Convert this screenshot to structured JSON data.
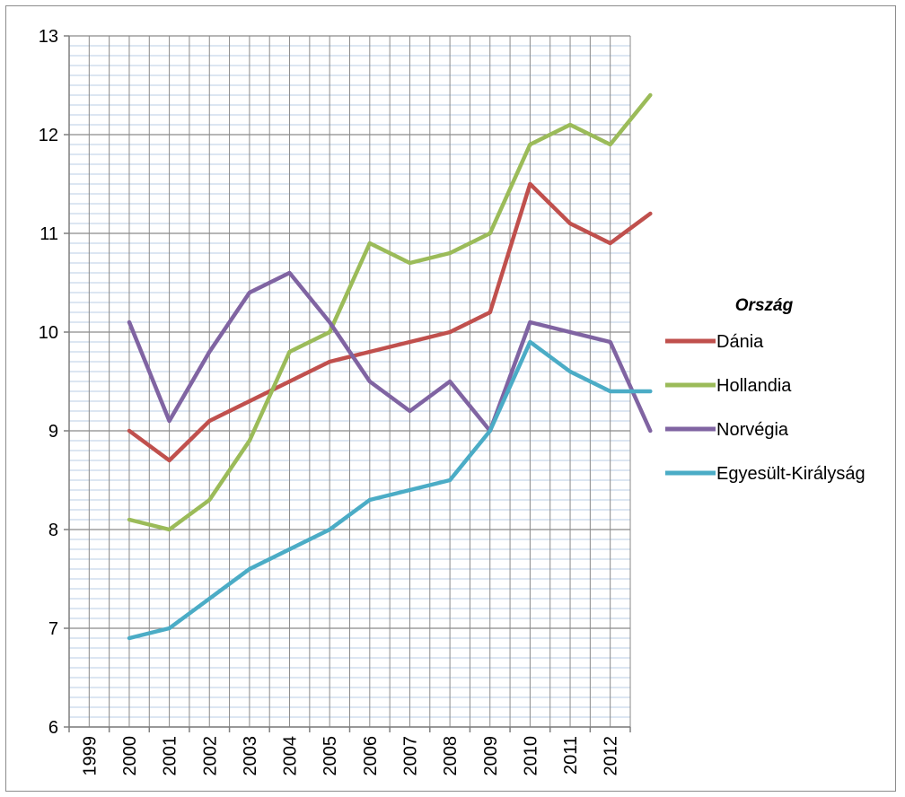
{
  "chart_data": {
    "type": "line",
    "title": "",
    "xlabel": "",
    "ylabel": "",
    "x": [
      "1999",
      "2000",
      "2001",
      "2002",
      "2003",
      "2004",
      "2005",
      "2006",
      "2007",
      "2008",
      "2009",
      "2010",
      "2011",
      "2012"
    ],
    "ylim": [
      6,
      13
    ],
    "yticks": [
      "6",
      "7",
      "8",
      "9",
      "10",
      "11",
      "12",
      "13"
    ],
    "grid": true,
    "legend_title": "Ország",
    "legend_position": "right",
    "series": [
      {
        "name": "Dánia",
        "color": "#C0504D",
        "values": [
          9.0,
          8.7,
          9.1,
          9.3,
          9.5,
          9.7,
          9.8,
          9.9,
          10.0,
          10.2,
          11.5,
          11.1,
          10.9,
          11.2
        ]
      },
      {
        "name": "Hollandia",
        "color": "#9BBB59",
        "values": [
          8.1,
          8.0,
          8.3,
          8.9,
          9.8,
          10.0,
          10.9,
          10.7,
          10.8,
          11.0,
          11.9,
          12.1,
          11.9,
          12.4
        ]
      },
      {
        "name": "Norvégia",
        "color": "#8064A2",
        "values": [
          10.1,
          9.1,
          9.8,
          10.4,
          10.6,
          10.1,
          9.5,
          9.2,
          9.5,
          9.0,
          10.1,
          10.0,
          9.9,
          9.0
        ]
      },
      {
        "name": "Egyesült-Királyság",
        "color": "#4BACC6",
        "values": [
          6.9,
          7.0,
          7.3,
          7.6,
          7.8,
          8.0,
          8.3,
          8.4,
          8.5,
          9.0,
          9.9,
          9.6,
          9.4,
          9.4
        ]
      }
    ]
  }
}
